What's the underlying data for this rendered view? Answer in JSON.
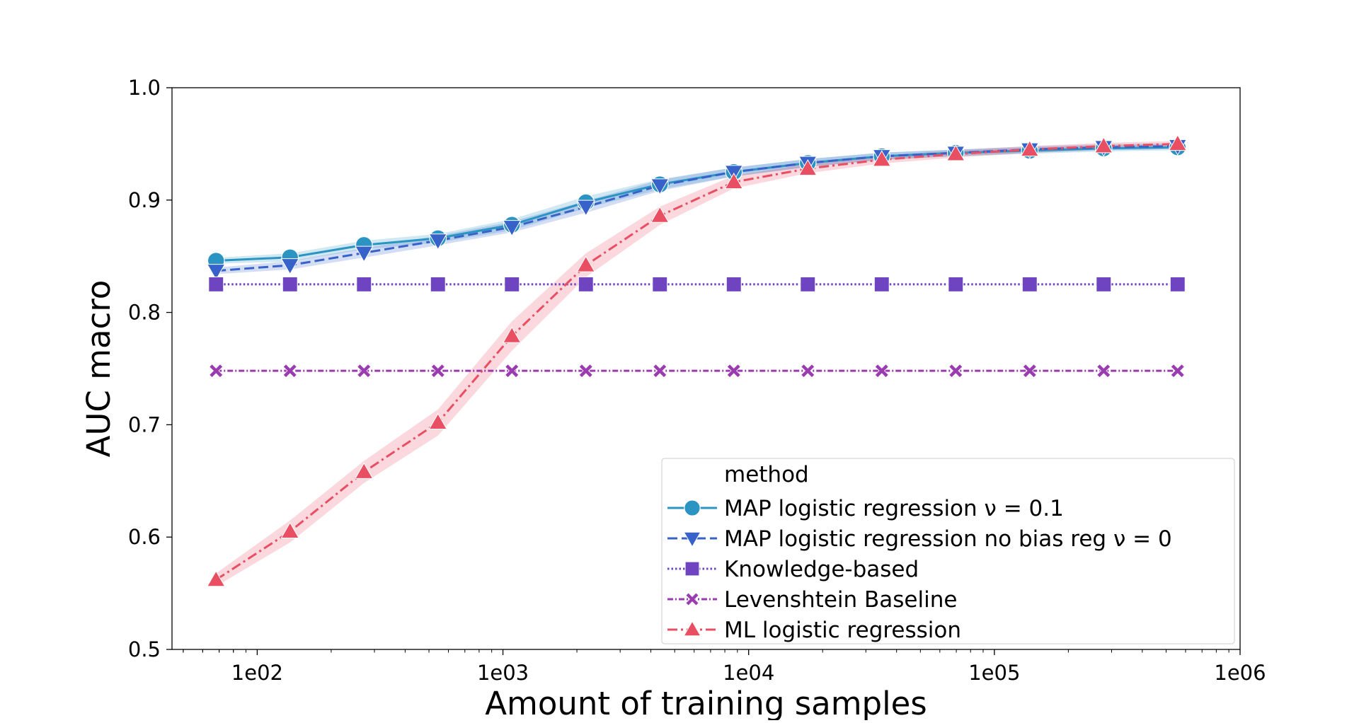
{
  "chart_data": {
    "type": "line",
    "xlabel": "Amount of training samples",
    "ylabel": "AUC macro",
    "xscale": "log",
    "xlim": [
      45,
      1000000
    ],
    "ylim": [
      0.5,
      1.0
    ],
    "xticks": [
      100,
      1000,
      10000,
      100000,
      1000000
    ],
    "xtick_labels": [
      "1e02",
      "1e03",
      "1e04",
      "1e05",
      "1e06"
    ],
    "yticks": [
      0.5,
      0.6,
      0.7,
      0.8,
      0.9,
      1.0
    ],
    "ytick_labels": [
      "0.5",
      "0.6",
      "0.7",
      "0.8",
      "0.9",
      "1.0"
    ],
    "grid": false,
    "legend": {
      "title": "method",
      "position": "lower-right"
    },
    "x": [
      68,
      136,
      272,
      544,
      1088,
      2176,
      4352,
      8704,
      17408,
      34816,
      69632,
      139264,
      278528,
      557056
    ],
    "series": [
      {
        "name": "MAP logistic regression ν = 0.1",
        "color": "#2b94c3",
        "dash": "solid",
        "marker": "circle",
        "band": true,
        "values": [
          0.846,
          0.849,
          0.86,
          0.866,
          0.878,
          0.898,
          0.914,
          0.925,
          0.933,
          0.939,
          0.942,
          0.944,
          0.946,
          0.947
        ]
      },
      {
        "name": "MAP logistic regression no bias reg ν = 0",
        "color": "#3662c9",
        "dash": "dashed",
        "marker": "triangle-down",
        "band": true,
        "values": [
          0.837,
          0.842,
          0.853,
          0.864,
          0.876,
          0.894,
          0.913,
          0.925,
          0.933,
          0.939,
          0.942,
          0.945,
          0.947,
          0.948
        ]
      },
      {
        "name": "Knowledge-based",
        "color": "#6e44c1",
        "dash": "dotted",
        "marker": "square",
        "band": false,
        "values": [
          0.825,
          0.825,
          0.825,
          0.825,
          0.825,
          0.825,
          0.825,
          0.825,
          0.825,
          0.825,
          0.825,
          0.825,
          0.825,
          0.825
        ]
      },
      {
        "name": "Levenshtein Baseline",
        "color": "#9a3cb0",
        "dash": "dashdot-fine",
        "marker": "x",
        "band": false,
        "values": [
          0.748,
          0.748,
          0.748,
          0.748,
          0.748,
          0.748,
          0.748,
          0.748,
          0.748,
          0.748,
          0.748,
          0.748,
          0.748,
          0.748
        ]
      },
      {
        "name": "ML logistic regression",
        "color": "#e84f63",
        "dash": "dashdot",
        "marker": "triangle-up",
        "band": true,
        "values": [
          0.562,
          0.605,
          0.658,
          0.702,
          0.779,
          0.842,
          0.886,
          0.916,
          0.928,
          0.936,
          0.941,
          0.945,
          0.948,
          0.95
        ]
      }
    ]
  }
}
